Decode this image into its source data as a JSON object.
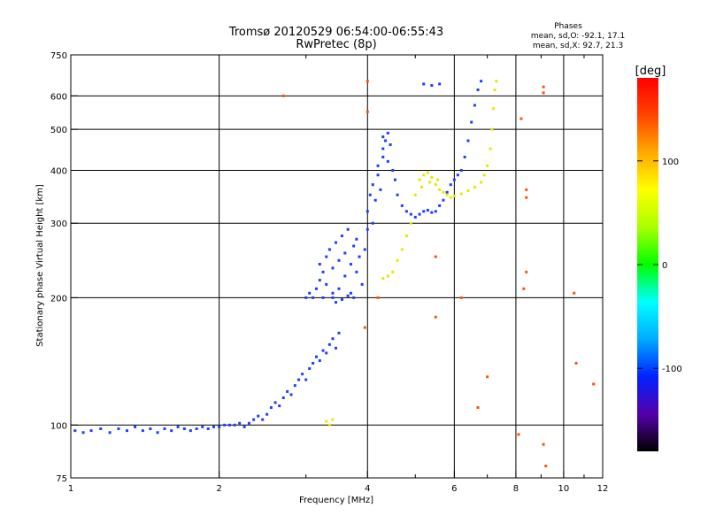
{
  "chart_data": {
    "type": "scatter",
    "title": "Tromsø 20120529 06:54:00-06:55:43",
    "subtitle": "RwPretec (8p)",
    "stats": {
      "heading": "Phases",
      "line1": "mean, sd,O: -92.1, 17.1",
      "line2": "mean, sd,X:  92.7, 21.3"
    },
    "xlabel": "Frequency [MHz]",
    "ylabel": "Stationary phase Virtual Height [km]",
    "xscale": "log",
    "yscale": "log",
    "xlim": [
      1,
      12
    ],
    "ylim": [
      75,
      750
    ],
    "grid": true,
    "xticks": [
      1,
      2,
      4,
      6,
      8,
      10,
      12
    ],
    "xtick_labels": [
      "1",
      "2",
      "4",
      "6",
      "8",
      "10",
      "12"
    ],
    "xminor": [
      3,
      5,
      7,
      9,
      11
    ],
    "yticks": [
      75,
      100,
      200,
      300,
      400,
      500,
      600,
      750
    ],
    "ytick_labels": [
      "75",
      "100",
      "200",
      "300",
      "400",
      "500",
      "600",
      "750"
    ],
    "colorbar": {
      "label": "[deg]",
      "range": [
        -180,
        180
      ],
      "ticks": [
        100,
        0,
        -100
      ],
      "tick_labels": [
        "100",
        "0",
        "-100"
      ],
      "colormap": "rainbow",
      "colors": [
        "#000000",
        "#5500aa",
        "#0022ff",
        "#00aaff",
        "#00ffff",
        "#00ff00",
        "#aaff00",
        "#ffff00",
        "#ffaa00",
        "#ff4400",
        "#ff0000"
      ]
    },
    "series": [
      {
        "mode": "O",
        "color": "#1f3fff",
        "points": [
          [
            1.02,
            97
          ],
          [
            1.06,
            96
          ],
          [
            1.1,
            97
          ],
          [
            1.15,
            98
          ],
          [
            1.2,
            96
          ],
          [
            1.25,
            98
          ],
          [
            1.3,
            97
          ],
          [
            1.35,
            99
          ],
          [
            1.4,
            97
          ],
          [
            1.45,
            98
          ],
          [
            1.5,
            96
          ],
          [
            1.55,
            98
          ],
          [
            1.6,
            97
          ],
          [
            1.65,
            99
          ],
          [
            1.7,
            98
          ],
          [
            1.75,
            97
          ],
          [
            1.8,
            98
          ],
          [
            1.85,
            99
          ],
          [
            1.9,
            98
          ],
          [
            1.95,
            99
          ],
          [
            2.0,
            99
          ],
          [
            2.05,
            100
          ],
          [
            2.1,
            100
          ],
          [
            2.15,
            100
          ],
          [
            2.2,
            101
          ],
          [
            2.25,
            99
          ],
          [
            2.3,
            101
          ],
          [
            2.35,
            103
          ],
          [
            2.4,
            105
          ],
          [
            2.45,
            103
          ],
          [
            2.5,
            106
          ],
          [
            2.55,
            110
          ],
          [
            2.6,
            113
          ],
          [
            2.65,
            111
          ],
          [
            2.7,
            116
          ],
          [
            2.75,
            120
          ],
          [
            2.8,
            118
          ],
          [
            2.85,
            124
          ],
          [
            2.9,
            128
          ],
          [
            2.95,
            132
          ],
          [
            3.0,
            128
          ],
          [
            3.05,
            136
          ],
          [
            3.1,
            140
          ],
          [
            3.15,
            145
          ],
          [
            3.2,
            142
          ],
          [
            3.25,
            150
          ],
          [
            3.3,
            148
          ],
          [
            3.35,
            155
          ],
          [
            3.4,
            160
          ],
          [
            3.45,
            152
          ],
          [
            3.5,
            165
          ],
          [
            3.1,
            200
          ],
          [
            3.15,
            210
          ],
          [
            3.2,
            220
          ],
          [
            3.2,
            240
          ],
          [
            3.25,
            230
          ],
          [
            3.3,
            250
          ],
          [
            3.3,
            215
          ],
          [
            3.35,
            260
          ],
          [
            3.4,
            205
          ],
          [
            3.4,
            235
          ],
          [
            3.45,
            270
          ],
          [
            3.5,
            245
          ],
          [
            3.5,
            210
          ],
          [
            3.55,
            280
          ],
          [
            3.6,
            225
          ],
          [
            3.6,
            255
          ],
          [
            3.65,
            290
          ],
          [
            3.7,
            240
          ],
          [
            3.7,
            205
          ],
          [
            3.75,
            265
          ],
          [
            3.8,
            230
          ],
          [
            3.8,
            275
          ],
          [
            3.85,
            250
          ],
          [
            3.9,
            215
          ],
          [
            3.95,
            260
          ],
          [
            4.0,
            290
          ],
          [
            4.0,
            320
          ],
          [
            4.05,
            350
          ],
          [
            4.1,
            300
          ],
          [
            4.1,
            370
          ],
          [
            4.15,
            340
          ],
          [
            4.2,
            390
          ],
          [
            4.2,
            410
          ],
          [
            4.25,
            360
          ],
          [
            4.3,
            430
          ],
          [
            4.3,
            450
          ],
          [
            4.35,
            470
          ],
          [
            4.4,
            490
          ],
          [
            4.4,
            420
          ],
          [
            4.45,
            460
          ],
          [
            4.5,
            400
          ],
          [
            4.55,
            380
          ],
          [
            4.6,
            350
          ],
          [
            4.7,
            330
          ],
          [
            4.8,
            320
          ],
          [
            4.9,
            315
          ],
          [
            5.0,
            310
          ],
          [
            5.1,
            315
          ],
          [
            5.2,
            320
          ],
          [
            5.3,
            322
          ],
          [
            5.4,
            318
          ],
          [
            5.5,
            320
          ],
          [
            5.6,
            330
          ],
          [
            5.7,
            340
          ],
          [
            5.8,
            355
          ],
          [
            5.9,
            370
          ],
          [
            6.0,
            380
          ],
          [
            6.1,
            390
          ],
          [
            6.2,
            400
          ],
          [
            6.3,
            430
          ],
          [
            6.4,
            470
          ],
          [
            6.5,
            520
          ],
          [
            6.6,
            570
          ],
          [
            6.7,
            620
          ],
          [
            6.8,
            650
          ],
          [
            5.2,
            640
          ],
          [
            5.4,
            635
          ],
          [
            5.6,
            640
          ],
          [
            3.4,
            200
          ],
          [
            3.45,
            195
          ],
          [
            3.55,
            198
          ],
          [
            3.65,
            202
          ],
          [
            3.0,
            200
          ],
          [
            3.05,
            205
          ],
          [
            3.25,
            200
          ],
          [
            3.75,
            200
          ],
          [
            4.3,
            480
          ]
        ]
      },
      {
        "mode": "X",
        "color": "#e8e800",
        "points": [
          [
            3.3,
            102
          ],
          [
            3.35,
            100
          ],
          [
            3.4,
            103
          ],
          [
            4.3,
            222
          ],
          [
            4.4,
            225
          ],
          [
            4.5,
            230
          ],
          [
            4.6,
            245
          ],
          [
            4.7,
            260
          ],
          [
            4.8,
            280
          ],
          [
            4.9,
            300
          ],
          [
            5.0,
            350
          ],
          [
            5.1,
            380
          ],
          [
            5.2,
            390
          ],
          [
            5.3,
            395
          ],
          [
            5.4,
            385
          ],
          [
            5.5,
            370
          ],
          [
            5.6,
            360
          ],
          [
            5.7,
            355
          ],
          [
            5.8,
            350
          ],
          [
            5.9,
            345
          ],
          [
            6.0,
            348
          ],
          [
            6.2,
            352
          ],
          [
            6.4,
            358
          ],
          [
            6.6,
            365
          ],
          [
            6.8,
            375
          ],
          [
            6.9,
            390
          ],
          [
            7.0,
            410
          ],
          [
            7.1,
            450
          ],
          [
            7.15,
            500
          ],
          [
            7.2,
            560
          ],
          [
            7.25,
            620
          ],
          [
            7.3,
            650
          ],
          [
            5.15,
            365
          ],
          [
            5.35,
            375
          ],
          [
            5.55,
            380
          ]
        ]
      },
      {
        "mode": "outliers",
        "color": "#ff5500",
        "points": [
          [
            2.7,
            600
          ],
          [
            4.0,
            650
          ],
          [
            4.0,
            550
          ],
          [
            3.95,
            170
          ],
          [
            4.2,
            200
          ],
          [
            5.5,
            250
          ],
          [
            5.5,
            180
          ],
          [
            6.7,
            110
          ],
          [
            7.0,
            130
          ],
          [
            8.2,
            530
          ],
          [
            8.4,
            360
          ],
          [
            8.4,
            345
          ],
          [
            8.4,
            230
          ],
          [
            9.1,
            630
          ],
          [
            9.1,
            610
          ],
          [
            9.1,
            90
          ],
          [
            9.2,
            80
          ],
          [
            10.5,
            205
          ],
          [
            10.6,
            140
          ],
          [
            11.5,
            125
          ],
          [
            8.3,
            210
          ],
          [
            8.1,
            95
          ],
          [
            6.2,
            200
          ]
        ]
      }
    ]
  }
}
